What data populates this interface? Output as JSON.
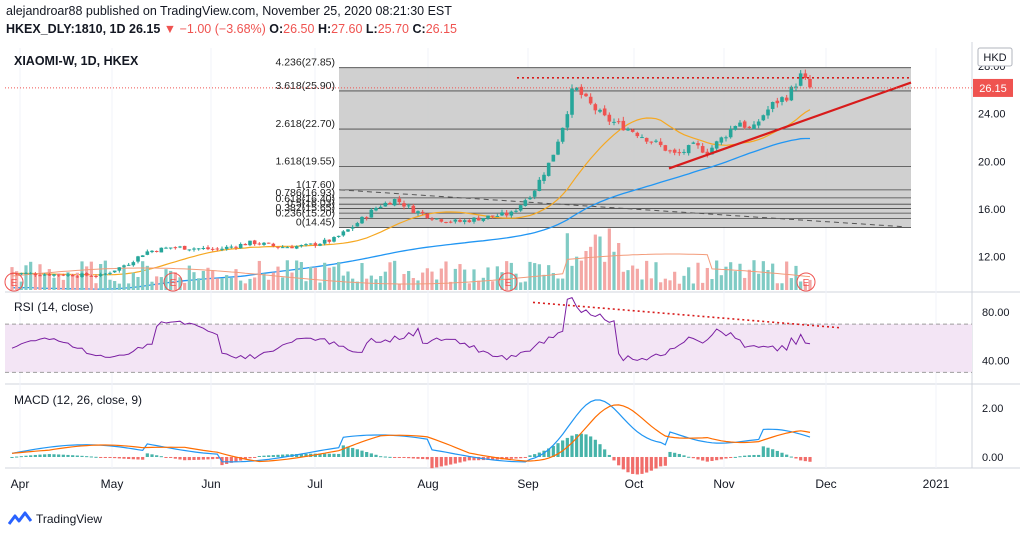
{
  "header": {
    "line1": "alejandroar88 published on TradingView.com, November 25, 2020 08:21:30 EST",
    "symbol": "HKEX_DLY:1810, 1D",
    "price": "26.15",
    "change": "−1.00 (−3.68%)",
    "o_label": "O:",
    "o": "26.50",
    "h_label": "H:",
    "h": "27.60",
    "l_label": "L:",
    "l": "25.70",
    "c_label": "C:",
    "c": "26.15"
  },
  "footer": {
    "brand": "TradingView"
  },
  "chart_data": [
    {
      "type": "candlestick",
      "title": "XIAOMI-W, 1D, HKEX",
      "currency": "HKD",
      "price_tag": "26.15",
      "y_ticks": [
        "28.00",
        "24.00",
        "20.00",
        "16.00",
        "12.00"
      ],
      "ylim": [
        9.2,
        29.5
      ],
      "x_ticks": [
        "Apr",
        "May",
        "Jun",
        "Jul",
        "Aug",
        "Sep",
        "Oct",
        "Nov",
        "Dec",
        "2021"
      ],
      "fib_levels": [
        {
          "label": "4.236(27.85)",
          "value": 27.85
        },
        {
          "label": "3.618(25.90)",
          "value": 25.9
        },
        {
          "label": "2.618(22.70)",
          "value": 22.7
        },
        {
          "label": "1.618(19.55)",
          "value": 19.55
        },
        {
          "label": "1(17.60)",
          "value": 17.6
        },
        {
          "label": "0.786(16.93)",
          "value": 16.93
        },
        {
          "label": "0.618(16.40)",
          "value": 16.4
        },
        {
          "label": "0.5(16.03)",
          "value": 16.03
        },
        {
          "label": "0.382(15.65)",
          "value": 15.65
        },
        {
          "label": "0.236(15.20)",
          "value": 15.2
        },
        {
          "label": "0(14.45)",
          "value": 14.45
        }
      ],
      "earnings_markers": [
        "E",
        "E",
        "E",
        "E"
      ],
      "candles_ohlc": [],
      "colors": {
        "up": "#26a69a",
        "down": "#ef5350",
        "ma_fast": "#f6a821",
        "ma_slow": "#2196f3",
        "trend": "#d81b1b"
      }
    },
    {
      "type": "line",
      "title": "RSI (14, close)",
      "y_ticks": [
        "80.00",
        "40.00"
      ],
      "bands": [
        70,
        30
      ],
      "colors": {
        "line": "#7b1fa2",
        "band": "#f3e5f5"
      }
    },
    {
      "type": "bar+line",
      "title": "MACD (12, 26, close, 9)",
      "y_ticks": [
        "2.00",
        "0.00"
      ],
      "colors": {
        "macd": "#2196f3",
        "signal": "#ff6d00",
        "hist_up": "#26a69a",
        "hist_down": "#ef5350"
      }
    }
  ]
}
